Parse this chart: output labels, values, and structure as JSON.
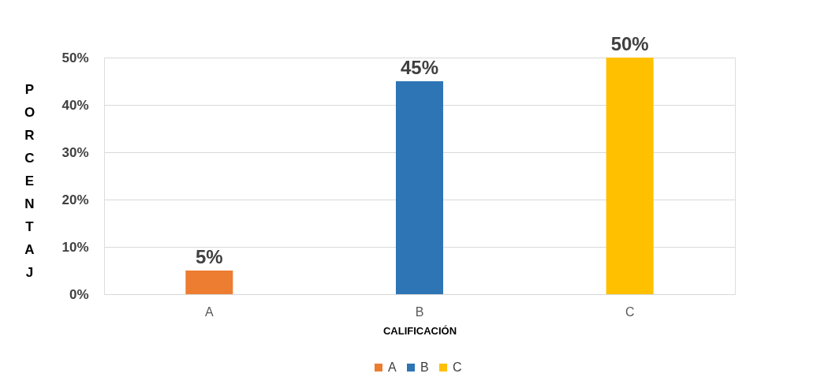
{
  "chart_data": {
    "type": "bar",
    "xlabel": "CALIFICACIÓN",
    "ylabel": "PORCENTAJ",
    "categories": [
      "A",
      "B",
      "C"
    ],
    "series": [
      {
        "name": "A",
        "color": "#ed7d31",
        "values": [
          5,
          null,
          null
        ],
        "value_labels": [
          "5%",
          null,
          null
        ]
      },
      {
        "name": "B",
        "color": "#2e75b6",
        "values": [
          null,
          45,
          null
        ],
        "value_labels": [
          null,
          "45%",
          null
        ]
      },
      {
        "name": "C",
        "color": "#ffc000",
        "values": [
          null,
          null,
          50
        ],
        "value_labels": [
          null,
          null,
          "50%"
        ]
      }
    ],
    "ylim": [
      0,
      50
    ],
    "yticks": [
      {
        "value": 0,
        "label": "0%"
      },
      {
        "value": 10,
        "label": "10%"
      },
      {
        "value": 20,
        "label": "20%"
      },
      {
        "value": 30,
        "label": "30%"
      },
      {
        "value": 40,
        "label": "40%"
      },
      {
        "value": 50,
        "label": "50%"
      }
    ],
    "grid": "y",
    "legend": "bottom"
  }
}
